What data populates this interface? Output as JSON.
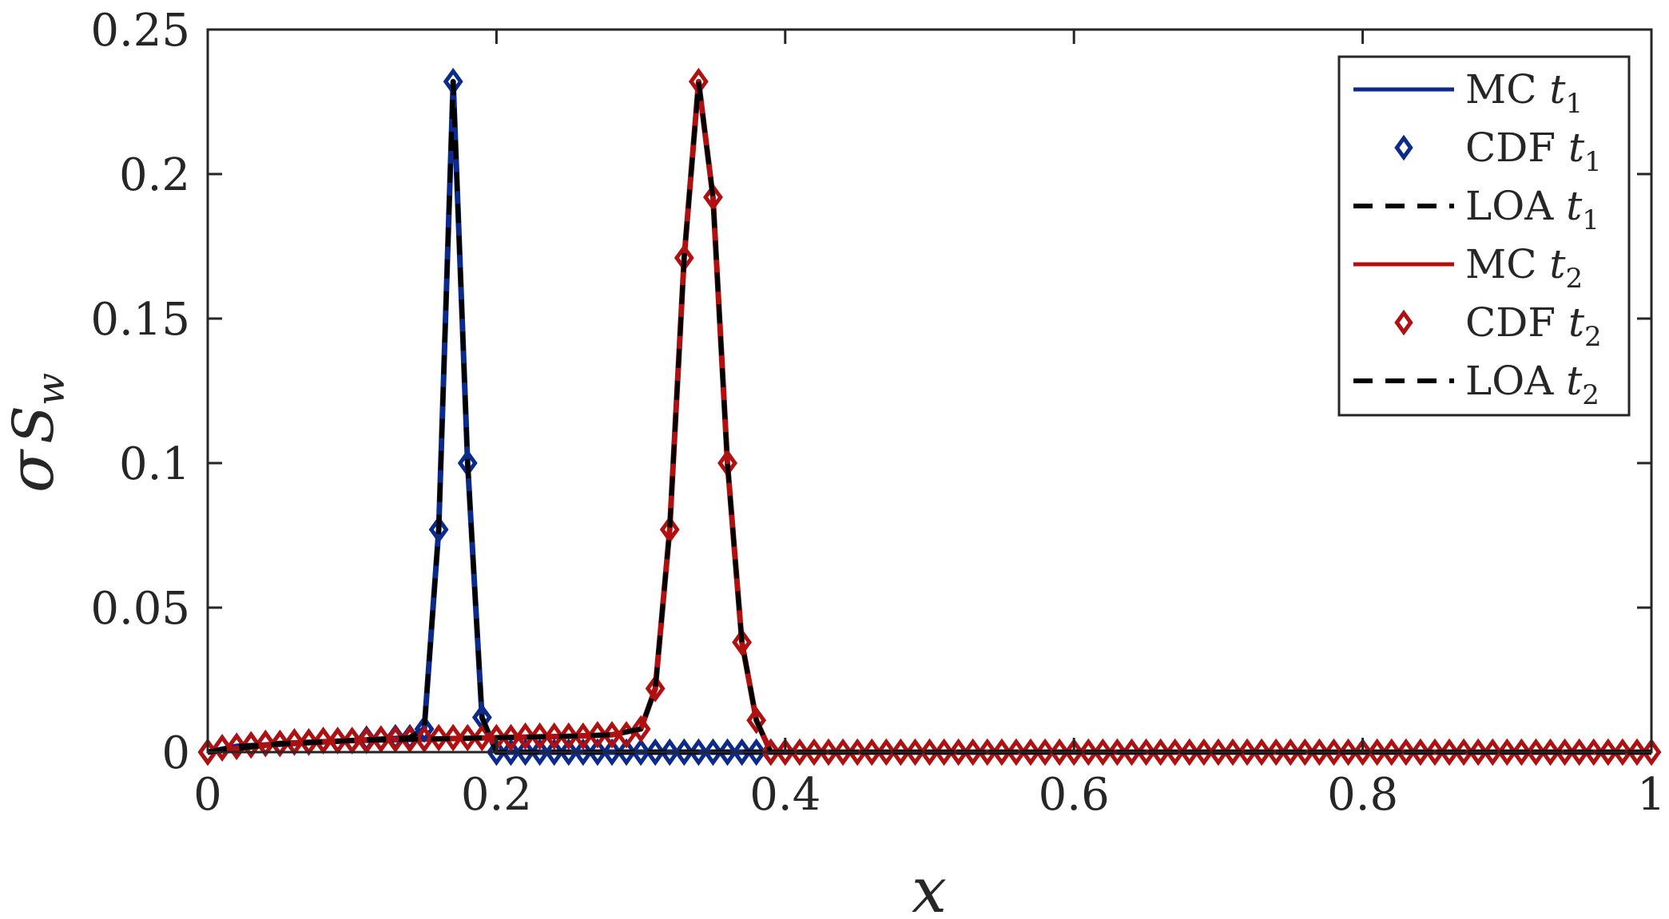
{
  "chart_data": {
    "type": "line",
    "xlabel": "x",
    "ylabel": "σ S w",
    "xlim": [
      0,
      1
    ],
    "ylim": [
      0,
      0.25
    ],
    "xticks": [
      "0",
      "0.2",
      "0.4",
      "0.6",
      "0.8",
      "1"
    ],
    "yticks": [
      "0",
      "0.05",
      "0.1",
      "0.15",
      "0.2",
      "0.25"
    ],
    "grid": false,
    "legend_position": "top-right",
    "colors": {
      "t1": "#0b2a8a",
      "t2": "#b01010",
      "loa": "#000000"
    },
    "series": [
      {
        "name": "MC t1",
        "style": "solid",
        "color": "#0b2a8a",
        "x": [
          0,
          0.02,
          0.04,
          0.06,
          0.08,
          0.1,
          0.12,
          0.14,
          0.15,
          0.16,
          0.17,
          0.18,
          0.19,
          0.2,
          0.21,
          0.25,
          0.3,
          0.35,
          0.4,
          0.45,
          0.5,
          0.6,
          0.7,
          0.8,
          0.9,
          1.0
        ],
        "y": [
          0,
          0.002,
          0.0025,
          0.003,
          0.0035,
          0.004,
          0.0045,
          0.005,
          0.008,
          0.077,
          0.232,
          0.1,
          0.012,
          0.0,
          0,
          0,
          0,
          0,
          0,
          0,
          0,
          0,
          0,
          0,
          0,
          0
        ]
      },
      {
        "name": "CDF t1",
        "style": "markers",
        "marker": "diamond",
        "color": "#0b2a8a",
        "x": [
          0,
          0.01,
          0.02,
          0.03,
          0.04,
          0.05,
          0.06,
          0.07,
          0.08,
          0.09,
          0.1,
          0.11,
          0.12,
          0.13,
          0.14,
          0.15,
          0.16,
          0.17,
          0.18,
          0.19,
          0.2,
          0.21,
          0.22,
          0.23,
          0.24,
          0.25,
          0.26,
          0.27,
          0.28,
          0.29,
          0.3,
          0.31,
          0.32,
          0.33,
          0.34,
          0.35,
          0.36,
          0.37,
          0.38,
          0.39
        ],
        "y": [
          0,
          0.0015,
          0.002,
          0.0025,
          0.003,
          0.003,
          0.0035,
          0.0035,
          0.004,
          0.004,
          0.004,
          0.0045,
          0.0045,
          0.005,
          0.005,
          0.008,
          0.077,
          0.232,
          0.1,
          0.012,
          0,
          0,
          0,
          0,
          0,
          0,
          0,
          0,
          0,
          0,
          0,
          0,
          0,
          0,
          0,
          0,
          0,
          0,
          0,
          0
        ]
      },
      {
        "name": "LOA t1",
        "style": "dashed",
        "color": "#000000",
        "x": [
          0,
          0.02,
          0.04,
          0.06,
          0.08,
          0.1,
          0.12,
          0.14,
          0.15,
          0.16,
          0.17,
          0.18,
          0.19,
          0.2,
          0.21,
          0.25,
          0.3,
          0.35,
          0.4,
          0.45,
          0.5,
          0.6,
          0.7,
          0.8,
          0.9,
          1.0
        ],
        "y": [
          0,
          0.002,
          0.0025,
          0.003,
          0.0035,
          0.004,
          0.0045,
          0.005,
          0.008,
          0.077,
          0.232,
          0.1,
          0.012,
          0.0,
          0,
          0,
          0,
          0,
          0,
          0,
          0,
          0,
          0,
          0,
          0,
          0
        ]
      },
      {
        "name": "MC t2",
        "style": "solid",
        "color": "#b01010",
        "x": [
          0,
          0.05,
          0.1,
          0.15,
          0.2,
          0.25,
          0.28,
          0.3,
          0.31,
          0.32,
          0.33,
          0.34,
          0.35,
          0.36,
          0.37,
          0.38,
          0.39,
          0.4,
          0.45,
          0.5,
          0.6,
          0.7,
          0.8,
          0.9,
          1.0
        ],
        "y": [
          0,
          0.003,
          0.004,
          0.0045,
          0.005,
          0.0055,
          0.006,
          0.008,
          0.022,
          0.077,
          0.171,
          0.232,
          0.192,
          0.1,
          0.038,
          0.011,
          0.0,
          0,
          0,
          0,
          0,
          0,
          0,
          0,
          0
        ]
      },
      {
        "name": "CDF t2",
        "style": "markers",
        "marker": "diamond",
        "color": "#b01010",
        "x": [
          0,
          0.01,
          0.02,
          0.03,
          0.04,
          0.05,
          0.06,
          0.07,
          0.08,
          0.09,
          0.1,
          0.11,
          0.12,
          0.13,
          0.14,
          0.15,
          0.16,
          0.17,
          0.18,
          0.19,
          0.2,
          0.21,
          0.22,
          0.23,
          0.24,
          0.25,
          0.26,
          0.27,
          0.28,
          0.29,
          0.3,
          0.31,
          0.32,
          0.33,
          0.34,
          0.35,
          0.36,
          0.37,
          0.38,
          0.39,
          0.4,
          0.41,
          0.42,
          0.43,
          0.44,
          0.45,
          0.46,
          0.47,
          0.48,
          0.49,
          0.5,
          0.51,
          0.52,
          0.53,
          0.54,
          0.55,
          0.56,
          0.57,
          0.58,
          0.59,
          0.6,
          0.61,
          0.62,
          0.63,
          0.64,
          0.65,
          0.66,
          0.67,
          0.68,
          0.69,
          0.7,
          0.71,
          0.72,
          0.73,
          0.74,
          0.75,
          0.76,
          0.77,
          0.78,
          0.79,
          0.8,
          0.81,
          0.82,
          0.83,
          0.84,
          0.85,
          0.86,
          0.87,
          0.88,
          0.89,
          0.9,
          0.91,
          0.92,
          0.93,
          0.94,
          0.95,
          0.96,
          0.97,
          0.98,
          0.99,
          1.0
        ],
        "y": [
          0,
          0.0015,
          0.002,
          0.0025,
          0.003,
          0.003,
          0.0035,
          0.0035,
          0.004,
          0.004,
          0.004,
          0.004,
          0.0045,
          0.0045,
          0.0045,
          0.0045,
          0.005,
          0.005,
          0.005,
          0.005,
          0.005,
          0.005,
          0.0055,
          0.0055,
          0.0055,
          0.0055,
          0.0055,
          0.006,
          0.006,
          0.006,
          0.008,
          0.022,
          0.077,
          0.171,
          0.232,
          0.192,
          0.1,
          0.038,
          0.011,
          0.0,
          0,
          0,
          0,
          0,
          0,
          0,
          0,
          0,
          0,
          0,
          0,
          0,
          0,
          0,
          0,
          0,
          0,
          0,
          0,
          0,
          0,
          0,
          0,
          0,
          0,
          0,
          0,
          0,
          0,
          0,
          0,
          0,
          0,
          0,
          0,
          0,
          0,
          0,
          0,
          0,
          0,
          0,
          0,
          0,
          0,
          0,
          0,
          0,
          0,
          0,
          0,
          0,
          0,
          0,
          0,
          0,
          0,
          0,
          0,
          0,
          0
        ]
      },
      {
        "name": "LOA t2",
        "style": "dashed",
        "color": "#000000",
        "x": [
          0,
          0.05,
          0.1,
          0.15,
          0.2,
          0.25,
          0.28,
          0.3,
          0.31,
          0.32,
          0.33,
          0.34,
          0.35,
          0.36,
          0.37,
          0.38,
          0.39,
          0.4,
          0.45,
          0.5,
          0.6,
          0.7,
          0.8,
          0.9,
          1.0
        ],
        "y": [
          0,
          0.003,
          0.004,
          0.0045,
          0.005,
          0.0055,
          0.006,
          0.008,
          0.022,
          0.077,
          0.171,
          0.232,
          0.192,
          0.1,
          0.038,
          0.011,
          0.0,
          0,
          0,
          0,
          0,
          0,
          0,
          0,
          0
        ]
      }
    ],
    "legend": [
      {
        "label": "MC",
        "sub": "1",
        "series": 0
      },
      {
        "label": "CDF",
        "sub": "1",
        "series": 1
      },
      {
        "label": "LOA",
        "sub": "1",
        "series": 2
      },
      {
        "label": "MC",
        "sub": "2",
        "series": 3
      },
      {
        "label": "CDF",
        "sub": "2",
        "series": 4
      },
      {
        "label": "LOA",
        "sub": "2",
        "series": 5
      }
    ]
  }
}
